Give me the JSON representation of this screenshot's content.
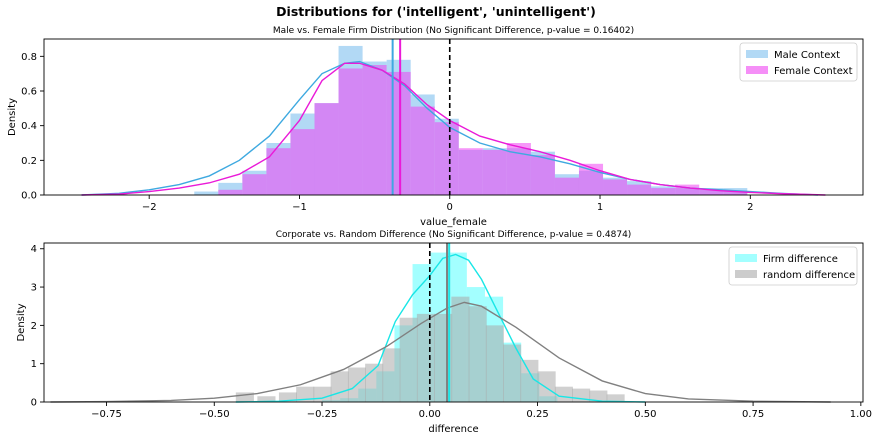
{
  "figure": {
    "title": "Distributions for ('intelligent', 'unintelligent')"
  },
  "chart_data": [
    {
      "type": "histogram-kde",
      "title": "Male vs. Female Firm Distribution (No Significant Difference, p-value = 0.16402)",
      "xlabel": "value_female",
      "ylabel": "Density",
      "xlim": [
        -2.7,
        2.75
      ],
      "ylim": [
        0,
        0.9
      ],
      "xticks": [
        -2,
        -1,
        0,
        1,
        2
      ],
      "xtick_labels": [
        "−2",
        "−1",
        "0",
        "1",
        "2"
      ],
      "yticks": [
        0,
        0.2,
        0.4,
        0.6,
        0.8
      ],
      "ytick_labels": [
        "0.0",
        "0.2",
        "0.4",
        "0.6",
        "0.8"
      ],
      "legend_position": "top-right",
      "grid": false,
      "bin_width": 0.16,
      "series": [
        {
          "name": "Male Context",
          "color": "#7fbfef",
          "line_color": "#3ea9e0",
          "bin_starts": [
            -1.7,
            -1.54,
            -1.38,
            -1.22,
            -1.06,
            -0.9,
            -0.74,
            -0.58,
            -0.42,
            -0.26,
            -0.1,
            0.06,
            0.22,
            0.38,
            0.54,
            0.7,
            0.86,
            1.02,
            1.18,
            1.34,
            1.5,
            1.66,
            1.82
          ],
          "heights": [
            0.02,
            0.07,
            0.14,
            0.3,
            0.47,
            0.53,
            0.86,
            0.77,
            0.78,
            0.58,
            0.44,
            0.26,
            0.27,
            0.27,
            0.25,
            0.12,
            0.14,
            0.1,
            0.08,
            0.05,
            0.04,
            0.04,
            0.04
          ],
          "kde_x": [
            -2.45,
            -2.2,
            -2.0,
            -1.8,
            -1.6,
            -1.4,
            -1.2,
            -1.0,
            -0.85,
            -0.7,
            -0.6,
            -0.45,
            -0.3,
            -0.15,
            0,
            0.2,
            0.4,
            0.6,
            0.8,
            1.0,
            1.2,
            1.4,
            1.6,
            1.8,
            2.0,
            2.2,
            2.45
          ],
          "kde_y": [
            0.0,
            0.01,
            0.03,
            0.06,
            0.11,
            0.2,
            0.34,
            0.55,
            0.7,
            0.76,
            0.77,
            0.72,
            0.63,
            0.5,
            0.39,
            0.3,
            0.25,
            0.22,
            0.18,
            0.13,
            0.09,
            0.06,
            0.04,
            0.03,
            0.02,
            0.01,
            0.0
          ],
          "mean": -0.38
        },
        {
          "name": "Female Context",
          "color": "#ee44f2",
          "line_color": "#ea1ad8",
          "bin_starts": [
            -1.54,
            -1.38,
            -1.22,
            -1.06,
            -0.9,
            -0.74,
            -0.58,
            -0.42,
            -0.26,
            -0.1,
            0.06,
            0.22,
            0.38,
            0.54,
            0.7,
            0.86,
            1.02,
            1.18,
            1.34,
            1.5,
            1.66,
            1.82
          ],
          "heights": [
            0.03,
            0.12,
            0.27,
            0.38,
            0.53,
            0.73,
            0.75,
            0.71,
            0.51,
            0.42,
            0.27,
            0.26,
            0.3,
            0.23,
            0.1,
            0.18,
            0.09,
            0.06,
            0.04,
            0.06,
            0.03,
            0.02
          ],
          "kde_x": [
            -2.45,
            -2.2,
            -2.0,
            -1.8,
            -1.6,
            -1.4,
            -1.2,
            -1.0,
            -0.85,
            -0.7,
            -0.6,
            -0.45,
            -0.3,
            -0.15,
            0,
            0.2,
            0.4,
            0.6,
            0.8,
            1.0,
            1.2,
            1.4,
            1.6,
            1.8,
            2.0,
            2.2,
            2.5
          ],
          "kde_y": [
            0.0,
            0.005,
            0.02,
            0.04,
            0.07,
            0.12,
            0.22,
            0.43,
            0.66,
            0.76,
            0.76,
            0.72,
            0.64,
            0.52,
            0.43,
            0.34,
            0.29,
            0.25,
            0.2,
            0.14,
            0.09,
            0.06,
            0.04,
            0.025,
            0.015,
            0.008,
            0.0
          ],
          "mean": -0.33
        }
      ],
      "reference_line_x": 0
    },
    {
      "type": "histogram-kde",
      "title": "Corporate vs. Random Difference (No Significant Difference, p-value = 0.4874)",
      "xlabel": "difference",
      "ylabel": "Density",
      "xlim": [
        -0.895,
        1.005
      ],
      "ylim": [
        0,
        4.15
      ],
      "xticks": [
        -0.75,
        -0.5,
        -0.25,
        0,
        0.25,
        0.5,
        0.75,
        1.0
      ],
      "xtick_labels": [
        "−0.75",
        "−0.50",
        "−0.25",
        "0.00",
        "0.25",
        "0.50",
        "0.75",
        "1.00"
      ],
      "yticks": [
        0,
        1,
        2,
        3,
        4
      ],
      "ytick_labels": [
        "0",
        "1",
        "2",
        "3",
        "4"
      ],
      "legend_position": "top-right",
      "grid": false,
      "bin_width": 0.042,
      "series": [
        {
          "name": "Firm difference",
          "color": "#66ffff",
          "line_color": "#19e6e6",
          "bin_starts": [
            -0.25,
            -0.208,
            -0.166,
            -0.124,
            -0.082,
            -0.04,
            0.002,
            0.044,
            0.086,
            0.128,
            0.17,
            0.212,
            0.254
          ],
          "heights": [
            0.05,
            0.1,
            0.35,
            0.8,
            2.0,
            3.6,
            3.9,
            3.9,
            3.0,
            2.75,
            1.55,
            0.75,
            0.15
          ],
          "kde_x": [
            -0.45,
            -0.35,
            -0.25,
            -0.18,
            -0.12,
            -0.08,
            -0.04,
            0,
            0.03,
            0.06,
            0.09,
            0.12,
            0.16,
            0.2,
            0.24,
            0.3,
            0.4,
            0.5
          ],
          "kde_y": [
            0.0,
            0.02,
            0.1,
            0.35,
            0.95,
            2.1,
            2.8,
            3.3,
            3.75,
            3.85,
            3.7,
            3.2,
            2.3,
            1.4,
            0.6,
            0.15,
            0.02,
            0.0
          ],
          "mean": 0.045
        },
        {
          "name": "random difference",
          "color": "#aaaaaa",
          "line_color": "#808080",
          "bin_starts": [
            -0.45,
            -0.4,
            -0.35,
            -0.31,
            -0.27,
            -0.23,
            -0.19,
            -0.15,
            -0.11,
            -0.07,
            -0.03,
            0.01,
            0.05,
            0.09,
            0.13,
            0.17,
            0.21,
            0.25,
            0.29,
            0.33,
            0.37,
            0.41
          ],
          "heights": [
            0.25,
            0.15,
            0.25,
            0.4,
            0.4,
            0.8,
            0.9,
            1.0,
            1.4,
            2.2,
            2.3,
            2.3,
            2.75,
            2.5,
            2.0,
            1.5,
            1.1,
            0.8,
            0.4,
            0.35,
            0.3,
            0.2
          ],
          "kde_x": [
            -0.88,
            -0.75,
            -0.6,
            -0.5,
            -0.4,
            -0.3,
            -0.2,
            -0.1,
            -0.02,
            0.04,
            0.08,
            0.12,
            0.2,
            0.3,
            0.4,
            0.5,
            0.6,
            0.75,
            0.93
          ],
          "kde_y": [
            0.0,
            0.01,
            0.04,
            0.1,
            0.22,
            0.45,
            0.85,
            1.45,
            2.05,
            2.45,
            2.6,
            2.5,
            1.95,
            1.15,
            0.55,
            0.22,
            0.08,
            0.02,
            0.0
          ],
          "mean": 0.04
        }
      ],
      "reference_line_x": 0
    }
  ]
}
